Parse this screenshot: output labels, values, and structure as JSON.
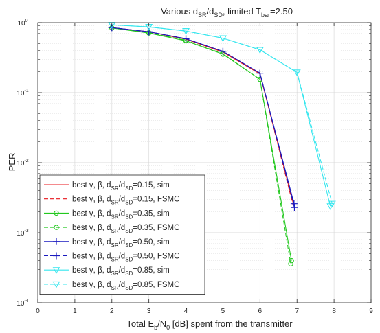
{
  "chart_data": {
    "type": "line",
    "title": {
      "main": "Various d",
      "sub1": "SR",
      "slash": "/d",
      "sub2": "SD",
      "tail": ",   limited T",
      "sub3": "bar",
      "value": "=2.50"
    },
    "xlabel": {
      "pre": "Total E",
      "sub1": "b",
      "mid": "/N",
      "sub2": "0",
      "post": " [dB] spent from the transmitter"
    },
    "ylabel": "PER",
    "xlim": [
      0,
      9
    ],
    "ylim": [
      0.0001,
      1
    ],
    "yscale": "log",
    "grid": true,
    "legend_position": "bottom-left",
    "x_ticks": [
      "0",
      "1",
      "2",
      "3",
      "4",
      "5",
      "6",
      "7",
      "8",
      "9"
    ],
    "y_ticks": [
      {
        "base": "10",
        "exp": "0"
      },
      {
        "base": "10",
        "exp": "-1"
      },
      {
        "base": "10",
        "exp": "-2"
      },
      {
        "base": "10",
        "exp": "-3"
      },
      {
        "base": "10",
        "exp": "-4"
      }
    ],
    "series": [
      {
        "label": {
          "pre": "best γ, β, d",
          "sub1": "SR",
          "mid": "/d",
          "sub2": "SD",
          "post": "=0.15, sim"
        },
        "color": "#e8161b",
        "dash": false,
        "marker": "none",
        "x": [
          2,
          3,
          4,
          5,
          6,
          6.9
        ],
        "y": [
          0.85,
          0.74,
          0.58,
          0.38,
          0.185,
          0.0026
        ]
      },
      {
        "label": {
          "pre": "best γ, β, d",
          "sub1": "SR",
          "mid": "/d",
          "sub2": "SD",
          "post": "=0.15, FSMC"
        },
        "color": "#e8161b",
        "dash": true,
        "marker": "none",
        "x": [
          2,
          3,
          4,
          5,
          6,
          6.9
        ],
        "y": [
          0.85,
          0.74,
          0.59,
          0.39,
          0.19,
          0.0024
        ]
      },
      {
        "label": {
          "pre": "best γ, β, d",
          "sub1": "SR",
          "mid": "/d",
          "sub2": "SD",
          "post": "=0.35, sim"
        },
        "color": "#22c81e",
        "dash": false,
        "marker": "circle",
        "x": [
          2,
          3,
          4,
          5,
          6,
          6.85
        ],
        "y": [
          0.84,
          0.71,
          0.55,
          0.355,
          0.155,
          0.0004
        ]
      },
      {
        "label": {
          "pre": "best γ, β, d",
          "sub1": "SR",
          "mid": "/d",
          "sub2": "SD",
          "post": "=0.35, FSMC"
        },
        "color": "#22c81e",
        "dash": true,
        "marker": "circle",
        "x": [
          2,
          3,
          4,
          5,
          6,
          6.83
        ],
        "y": [
          0.84,
          0.72,
          0.56,
          0.36,
          0.155,
          0.00036
        ]
      },
      {
        "label": {
          "pre": "best γ, β, d",
          "sub1": "SR",
          "mid": "/d",
          "sub2": "SD",
          "post": "=0.50, sim"
        },
        "color": "#1a1abf",
        "dash": false,
        "marker": "plus",
        "x": [
          2,
          3,
          4,
          5,
          6,
          6.92
        ],
        "y": [
          0.85,
          0.74,
          0.59,
          0.39,
          0.19,
          0.0026
        ]
      },
      {
        "label": {
          "pre": "best γ, β, d",
          "sub1": "SR",
          "mid": "/d",
          "sub2": "SD",
          "post": "=0.50, FSMC"
        },
        "color": "#1a1abf",
        "dash": true,
        "marker": "plus",
        "x": [
          2,
          3,
          4,
          5,
          6,
          6.93
        ],
        "y": [
          0.85,
          0.74,
          0.59,
          0.39,
          0.19,
          0.0023
        ]
      },
      {
        "label": {
          "pre": "best γ, β, d",
          "sub1": "SR",
          "mid": "/d",
          "sub2": "SD",
          "post": "=0.85, sim"
        },
        "color": "#35e6ee",
        "dash": false,
        "marker": "triangle-down",
        "x": [
          2,
          3,
          4,
          5,
          6,
          7,
          7.9
        ],
        "y": [
          0.93,
          0.87,
          0.76,
          0.6,
          0.41,
          0.195,
          0.0024
        ]
      },
      {
        "label": {
          "pre": "best γ, β, d",
          "sub1": "SR",
          "mid": "/d",
          "sub2": "SD",
          "post": "=0.85, FSMC"
        },
        "color": "#35e6ee",
        "dash": true,
        "marker": "triangle-down",
        "x": [
          2,
          3,
          4,
          5,
          6,
          7,
          7.95
        ],
        "y": [
          0.93,
          0.87,
          0.76,
          0.6,
          0.41,
          0.195,
          0.0026
        ]
      }
    ]
  }
}
